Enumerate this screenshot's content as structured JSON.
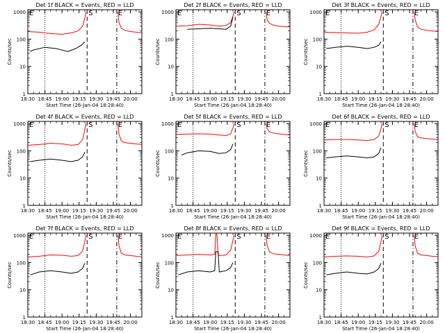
{
  "figure": {
    "time_ticks": [
      "18:30",
      "18:45",
      "19:00",
      "19:15",
      "19:30",
      "19:45",
      "20:00"
    ],
    "y_ticks": [
      "1",
      "10",
      "100",
      "1000"
    ],
    "xlabel": "Start Time (26-Jan-04 18:28:40)",
    "ylabel": "Counts/sec",
    "marker_s": "S",
    "marker_e": "E",
    "colors": {
      "events": "#000000",
      "lld": "#ff0000"
    }
  },
  "chart_data": [
    {
      "type": "line",
      "title": "Det 1f BLACK = Events, RED = LLD",
      "xlabel": "Start Time (26-Jan-04 18:28:40)",
      "ylabel": "Counts/sec",
      "xlim": [
        "18:30",
        "20:10"
      ],
      "ylim": [
        1,
        1200
      ],
      "y_scale": "log",
      "markers": {
        "E": "18:30",
        "S": "19:22",
        "E2": "19:48"
      },
      "series": [
        {
          "name": "LLD",
          "color": "#ff0000",
          "segments": [
            {
              "x": [
                "18:30",
                "18:40",
                "18:50",
                "19:00",
                "19:08",
                "19:14",
                "19:18",
                "19:20",
                "19:21"
              ],
              "y": [
                190,
                180,
                160,
                150,
                170,
                200,
                300,
                600,
                1000
              ]
            },
            {
              "x": [
                "19:49",
                "19:50",
                "19:52",
                "19:55",
                "20:00",
                "20:05",
                "20:10"
              ],
              "y": [
                1000,
                400,
                250,
                210,
                190,
                180,
                170
              ]
            }
          ]
        },
        {
          "name": "Events",
          "color": "#000000",
          "segments": [
            {
              "x": [
                "18:32",
                "18:35",
                "18:45",
                "18:55",
                "19:05",
                "19:12",
                "19:17",
                "19:20"
              ],
              "y": [
                35,
                40,
                50,
                45,
                35,
                45,
                60,
                80
              ]
            }
          ]
        }
      ]
    },
    {
      "type": "line",
      "title": "Det 2f BLACK = Events, RED = LLD",
      "xlabel": "Start Time (26-Jan-04 18:28:40)",
      "ylabel": "Counts/sec",
      "xlim": [
        "18:30",
        "20:10"
      ],
      "ylim": [
        1,
        1200
      ],
      "y_scale": "log",
      "markers": {
        "E": "18:30",
        "S": "19:22",
        "E2": "19:48"
      },
      "series": [
        {
          "name": "LLD",
          "color": "#ff0000",
          "segments": [
            {
              "x": [
                "18:30",
                "18:40",
                "18:50",
                "19:00",
                "19:08",
                "19:14",
                "19:18",
                "19:20",
                "19:21"
              ],
              "y": [
                300,
                310,
                350,
                330,
                300,
                320,
                400,
                700,
                1000
              ]
            },
            {
              "x": [
                "19:49",
                "19:50",
                "19:52",
                "19:55",
                "20:00",
                "20:05",
                "20:10"
              ],
              "y": [
                1000,
                500,
                380,
                330,
                300,
                290,
                280
              ]
            }
          ]
        },
        {
          "name": "Events",
          "color": "#000000",
          "segments": [
            {
              "x": [
                "18:40",
                "18:50",
                "19:00",
                "19:08",
                "19:14",
                "19:18",
                "19:20"
              ],
              "y": [
                230,
                240,
                250,
                240,
                230,
                300,
                650
              ]
            }
          ]
        }
      ]
    },
    {
      "type": "line",
      "title": "Det 3f BLACK = Events, RED = LLD",
      "xlabel": "Start Time (26-Jan-04 18:28:40)",
      "ylabel": "Counts/sec",
      "xlim": [
        "18:30",
        "20:10"
      ],
      "ylim": [
        1,
        1200
      ],
      "y_scale": "log",
      "markers": {
        "E": "18:30",
        "S": "19:22",
        "E2": "19:48"
      },
      "series": [
        {
          "name": "LLD",
          "color": "#ff0000",
          "segments": [
            {
              "x": [
                "18:30",
                "18:40",
                "18:50",
                "19:00",
                "19:08",
                "19:14",
                "19:18",
                "19:20",
                "19:21"
              ],
              "y": [
                180,
                175,
                170,
                165,
                180,
                220,
                350,
                700,
                1000
              ]
            },
            {
              "x": [
                "19:49",
                "19:50",
                "19:52",
                "19:55",
                "20:00",
                "20:05",
                "20:10"
              ],
              "y": [
                1000,
                500,
                280,
                230,
                210,
                200,
                190
              ]
            }
          ]
        },
        {
          "name": "Events",
          "color": "#000000",
          "segments": [
            {
              "x": [
                "18:32",
                "18:40",
                "18:50",
                "19:00",
                "19:08",
                "19:14",
                "19:18",
                "19:20"
              ],
              "y": [
                45,
                50,
                55,
                50,
                45,
                50,
                60,
                80
              ]
            }
          ]
        }
      ]
    },
    {
      "type": "line",
      "title": "Det 4f BLACK = Events, RED = LLD",
      "xlabel": "Start Time (26-Jan-04 18:28:40)",
      "ylabel": "Counts/sec",
      "xlim": [
        "18:30",
        "20:10"
      ],
      "ylim": [
        1,
        1200
      ],
      "y_scale": "log",
      "markers": {
        "E": "18:30",
        "S": "19:22",
        "E2": "19:48"
      },
      "series": [
        {
          "name": "LLD",
          "color": "#ff0000",
          "segments": [
            {
              "x": [
                "18:30",
                "18:40",
                "18:50",
                "19:00",
                "19:08",
                "19:14",
                "19:18",
                "19:20",
                "19:21"
              ],
              "y": [
                160,
                170,
                190,
                180,
                160,
                170,
                250,
                600,
                1000
              ]
            },
            {
              "x": [
                "19:49",
                "19:50",
                "19:52",
                "19:55",
                "20:00",
                "20:05",
                "20:10"
              ],
              "y": [
                1000,
                400,
                230,
                200,
                190,
                180,
                170
              ]
            }
          ]
        },
        {
          "name": "Events",
          "color": "#000000",
          "segments": [
            {
              "x": [
                "18:32",
                "18:40",
                "18:50",
                "19:00",
                "19:08",
                "19:14",
                "19:18",
                "19:20"
              ],
              "y": [
                40,
                45,
                50,
                45,
                40,
                45,
                60,
                90
              ]
            }
          ]
        }
      ]
    },
    {
      "type": "line",
      "title": "Det 5f BLACK = Events, RED = LLD",
      "xlabel": "Start Time (26-Jan-04 18:28:40)",
      "ylabel": "Counts/sec",
      "xlim": [
        "18:30",
        "20:10"
      ],
      "ylim": [
        1,
        1200
      ],
      "y_scale": "log",
      "markers": {
        "E": "18:30",
        "S": "19:22",
        "E2": "19:48"
      },
      "series": [
        {
          "name": "LLD",
          "color": "#ff0000",
          "segments": [
            {
              "x": [
                "18:30",
                "18:40",
                "18:50",
                "19:00",
                "19:08",
                "19:14",
                "19:18",
                "19:20",
                "19:21"
              ],
              "y": [
                400,
                410,
                420,
                410,
                380,
                360,
                420,
                700,
                1000
              ]
            },
            {
              "x": [
                "19:49",
                "19:50",
                "19:52",
                "19:55",
                "20:00",
                "20:05",
                "20:10"
              ],
              "y": [
                1000,
                650,
                500,
                450,
                420,
                400,
                380
              ]
            }
          ]
        },
        {
          "name": "Events",
          "color": "#000000",
          "segments": [
            {
              "x": [
                "18:35",
                "18:40",
                "18:50",
                "19:00",
                "19:08",
                "19:14",
                "19:18",
                "19:20"
              ],
              "y": [
                70,
                85,
                100,
                95,
                80,
                85,
                110,
                180
              ]
            }
          ]
        }
      ]
    },
    {
      "type": "line",
      "title": "Det 6f BLACK = Events, RED = LLD",
      "xlabel": "Start Time (26-Jan-04 18:28:40)",
      "ylabel": "Counts/sec",
      "xlim": [
        "18:30",
        "20:10"
      ],
      "ylim": [
        1,
        1200
      ],
      "y_scale": "log",
      "markers": {
        "E": "18:30",
        "S": "19:22",
        "E2": "19:48"
      },
      "series": [
        {
          "name": "LLD",
          "color": "#ff0000",
          "segments": [
            {
              "x": [
                "18:30",
                "18:40",
                "18:50",
                "19:00",
                "19:08",
                "19:14",
                "19:18",
                "19:20",
                "19:21"
              ],
              "y": [
                250,
                260,
                260,
                250,
                240,
                260,
                350,
                650,
                1000
              ]
            },
            {
              "x": [
                "19:49",
                "19:50",
                "19:52",
                "19:55",
                "20:00",
                "20:05",
                "20:10"
              ],
              "y": [
                1000,
                500,
                330,
                300,
                280,
                270,
                250
              ]
            }
          ]
        },
        {
          "name": "Events",
          "color": "#000000",
          "segments": [
            {
              "x": [
                "18:32",
                "18:40",
                "18:50",
                "19:00",
                "19:08",
                "19:14",
                "19:18",
                "19:20"
              ],
              "y": [
                55,
                60,
                65,
                60,
                55,
                60,
                80,
                130
              ]
            }
          ]
        }
      ]
    },
    {
      "type": "line",
      "title": "Det 7f BLACK = Events, RED = LLD",
      "xlabel": "Start Time (26-Jan-04 18:28:40)",
      "ylabel": "Counts/sec",
      "xlim": [
        "18:30",
        "20:10"
      ],
      "ylim": [
        1,
        1200
      ],
      "y_scale": "log",
      "markers": {
        "E": "18:30",
        "S": "19:22",
        "E2": "19:48"
      },
      "series": [
        {
          "name": "LLD",
          "color": "#ff0000",
          "segments": [
            {
              "x": [
                "18:30",
                "18:40",
                "18:50",
                "19:00",
                "19:08",
                "19:14",
                "19:18",
                "19:20",
                "19:21"
              ],
              "y": [
                160,
                170,
                190,
                185,
                170,
                180,
                260,
                600,
                1000
              ]
            },
            {
              "x": [
                "19:49",
                "19:50",
                "19:52",
                "19:55",
                "20:00",
                "20:05",
                "20:10"
              ],
              "y": [
                1000,
                400,
                220,
                190,
                180,
                170,
                160
              ]
            }
          ]
        },
        {
          "name": "Events",
          "color": "#000000",
          "segments": [
            {
              "x": [
                "18:32",
                "18:40",
                "18:50",
                "19:00",
                "19:08",
                "19:14",
                "19:18",
                "19:20"
              ],
              "y": [
                35,
                45,
                50,
                45,
                40,
                45,
                60,
                95
              ]
            }
          ]
        }
      ]
    },
    {
      "type": "line",
      "title": "Det 8f BLACK = Events, RED = LLD",
      "xlabel": "Start Time (26-Jan-04 18:28:40)",
      "ylabel": "Counts/sec",
      "xlim": [
        "18:30",
        "20:10"
      ],
      "ylim": [
        1,
        1200
      ],
      "y_scale": "log",
      "markers": {
        "E": "18:30",
        "S": "19:22",
        "E2": "19:48"
      },
      "series": [
        {
          "name": "LLD",
          "color": "#ff0000",
          "segments": [
            {
              "x": [
                "18:30",
                "18:40",
                "18:50",
                "19:00",
                "19:04",
                "19:05",
                "19:06",
                "19:07",
                "19:08",
                "19:14",
                "19:18",
                "19:20",
                "19:21"
              ],
              "y": [
                180,
                190,
                200,
                190,
                200,
                1100,
                1100,
                200,
                180,
                190,
                280,
                650,
                1000
              ]
            },
            {
              "x": [
                "19:49",
                "19:50",
                "19:52",
                "19:55",
                "20:00",
                "20:05",
                "20:10"
              ],
              "y": [
                1000,
                420,
                250,
                210,
                200,
                190,
                180
              ]
            }
          ]
        },
        {
          "name": "Events",
          "color": "#000000",
          "segments": [
            {
              "x": [
                "18:32",
                "18:40",
                "18:50",
                "19:00",
                "19:04",
                "19:05",
                "19:07",
                "19:08",
                "19:14",
                "19:18",
                "19:20"
              ],
              "y": [
                35,
                45,
                50,
                45,
                50,
                250,
                250,
                45,
                50,
                65,
                100
              ]
            }
          ]
        }
      ]
    },
    {
      "type": "line",
      "title": "Det 9f BLACK = Events, RED = LLD",
      "xlabel": "Start Time (26-Jan-04 18:28:40)",
      "ylabel": "Counts/sec",
      "xlim": [
        "18:30",
        "20:10"
      ],
      "ylim": [
        1,
        1200
      ],
      "y_scale": "log",
      "markers": {
        "E": "18:30",
        "S": "19:22",
        "E2": "19:48"
      },
      "series": [
        {
          "name": "LLD",
          "color": "#ff0000",
          "segments": [
            {
              "x": [
                "18:30",
                "18:40",
                "18:50",
                "19:00",
                "19:08",
                "19:14",
                "19:18",
                "19:20",
                "19:21"
              ],
              "y": [
                160,
                170,
                175,
                170,
                160,
                175,
                260,
                600,
                1000
              ]
            },
            {
              "x": [
                "19:49",
                "19:50",
                "19:52",
                "19:55",
                "20:00",
                "20:05",
                "20:10"
              ],
              "y": [
                1000,
                400,
                220,
                190,
                180,
                170,
                165
              ]
            }
          ]
        },
        {
          "name": "Events",
          "color": "#000000",
          "segments": [
            {
              "x": [
                "18:32",
                "18:40",
                "18:50",
                "19:00",
                "19:08",
                "19:14",
                "19:18",
                "19:20"
              ],
              "y": [
                35,
                40,
                45,
                40,
                38,
                45,
                60,
                95
              ]
            }
          ]
        }
      ]
    }
  ]
}
